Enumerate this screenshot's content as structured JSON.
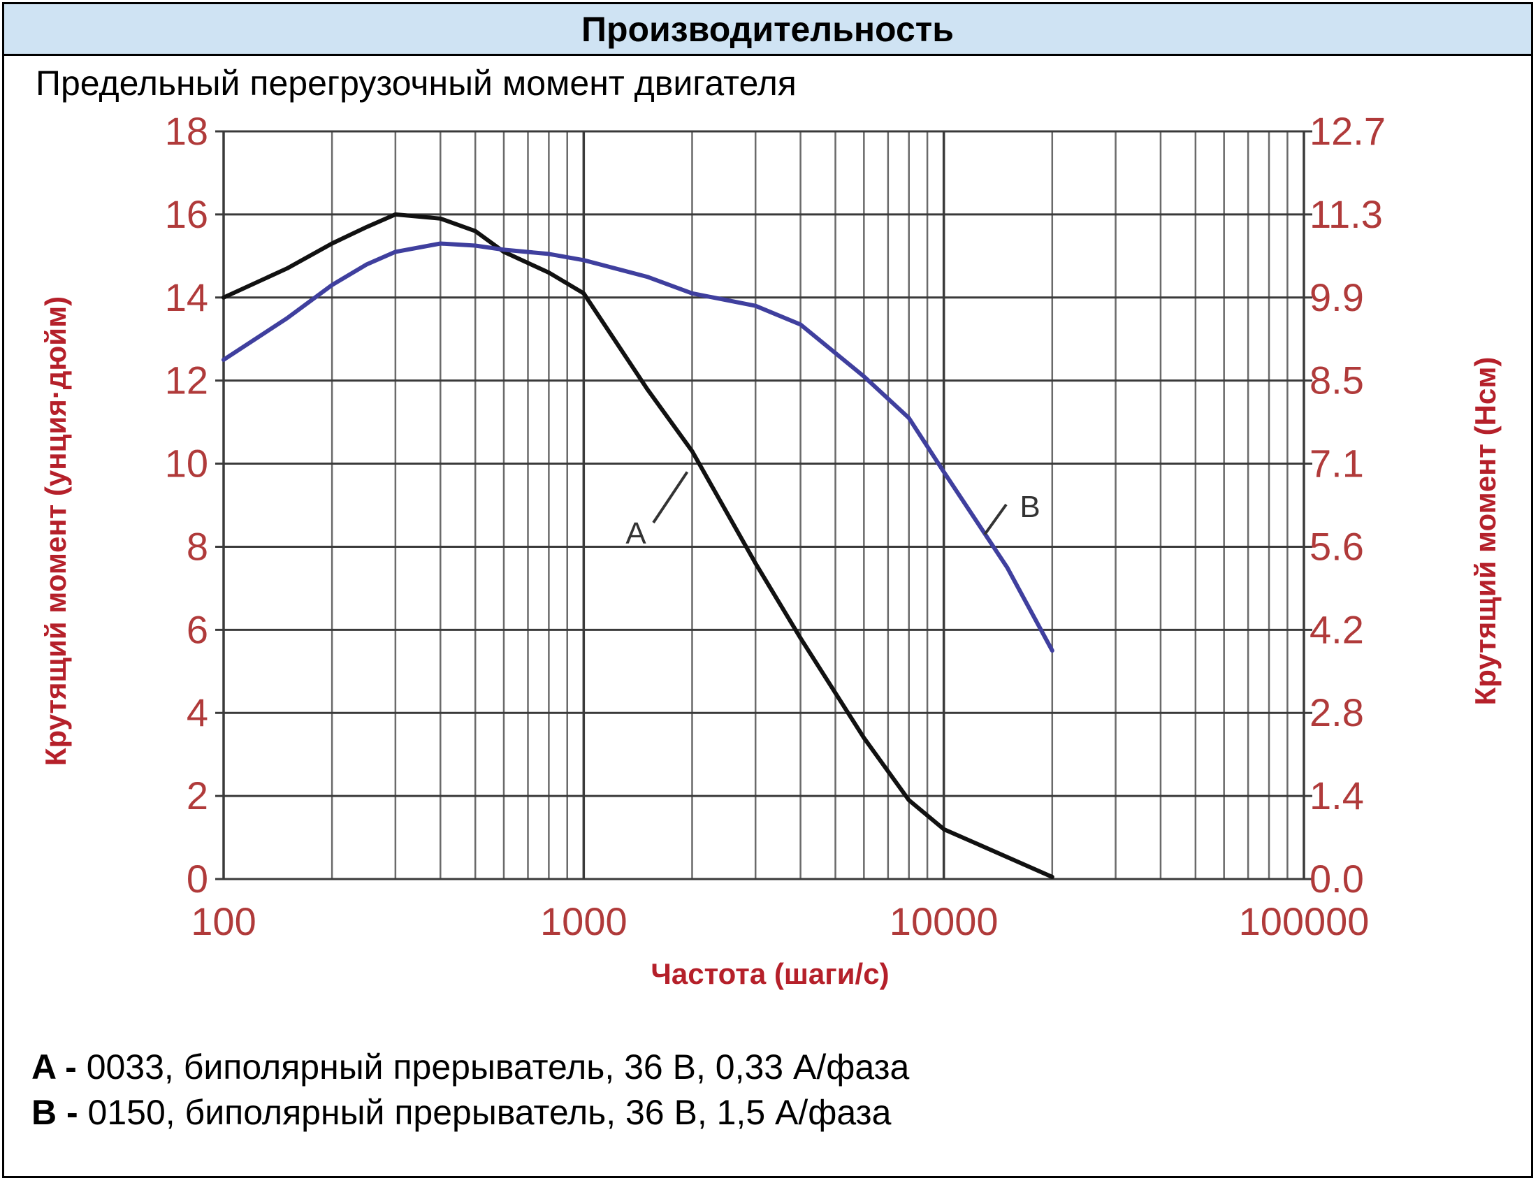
{
  "header": {
    "title": "Производительность"
  },
  "subtitle": "Предельный перегрузочный момент двигателя",
  "chart_data": {
    "type": "line",
    "title": "",
    "xlabel": "Частота (шаги/с)",
    "ylabel": "Крутящий момент (унция·дюйм)",
    "y2label": "Крутящий момент (Нсм)",
    "xscale": "log",
    "xlim": [
      100,
      100000
    ],
    "ylim": [
      0,
      18
    ],
    "grid": true,
    "x_ticks": [
      "100",
      "1000",
      "10000",
      "100000"
    ],
    "y_ticks": [
      "0",
      "2",
      "4",
      "6",
      "8",
      "10",
      "12",
      "14",
      "16",
      "18"
    ],
    "y2_ticks": [
      "0.0",
      "1.4",
      "2.8",
      "4.2",
      "5.6",
      "7.1",
      "8.5",
      "9.9",
      "11.3",
      "12.7"
    ],
    "series": [
      {
        "name": "A",
        "color": "#111111",
        "x": [
          100,
          150,
          200,
          250,
          300,
          400,
          500,
          600,
          800,
          1000,
          1500,
          2000,
          3000,
          4000,
          6000,
          8000,
          10000,
          20000
        ],
        "y": [
          14.0,
          14.7,
          15.3,
          15.7,
          16.0,
          15.9,
          15.6,
          15.1,
          14.6,
          14.1,
          11.8,
          10.3,
          7.6,
          5.8,
          3.4,
          1.9,
          1.2,
          0.05
        ]
      },
      {
        "name": "B",
        "color": "#3f3f9e",
        "x": [
          100,
          150,
          200,
          250,
          300,
          400,
          500,
          600,
          800,
          1000,
          1500,
          2000,
          3000,
          4000,
          6000,
          8000,
          10000,
          15000,
          20000
        ],
        "y": [
          12.5,
          13.5,
          14.3,
          14.8,
          15.1,
          15.3,
          15.25,
          15.15,
          15.05,
          14.9,
          14.5,
          14.1,
          13.8,
          13.35,
          12.1,
          11.1,
          9.8,
          7.5,
          5.5
        ]
      }
    ]
  },
  "legend": [
    {
      "key": "A -",
      "text": " 0033, биполярный прерыватель, 36 В, 0,33 А/фаза"
    },
    {
      "key": "B -",
      "text": " 0150, биполярный прерыватель, 36 В, 1,5 А/фаза"
    }
  ]
}
